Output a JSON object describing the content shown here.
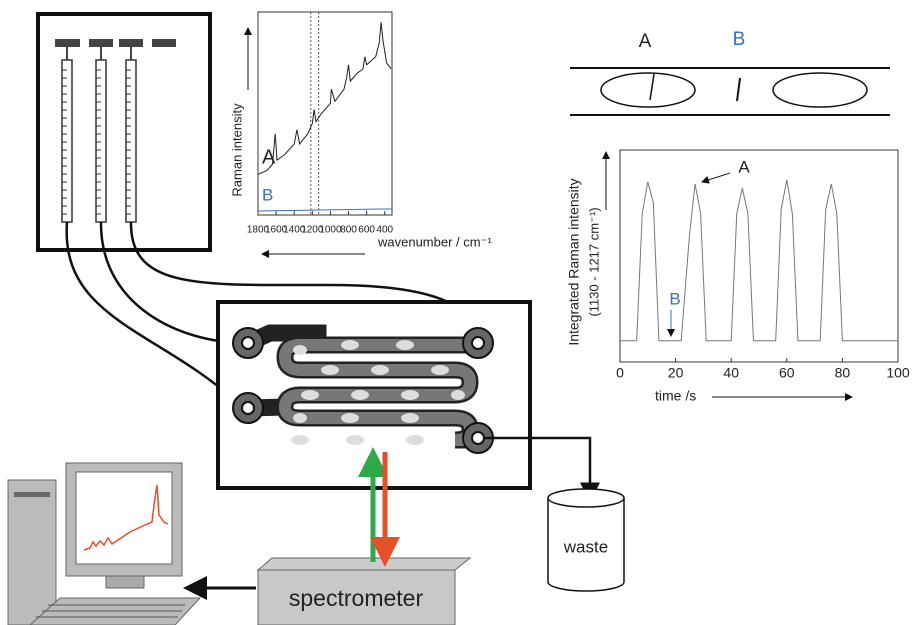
{
  "chart_data": [
    {
      "type": "line",
      "y_label": "Raman intensity",
      "x_label": "wavenumber / cm⁻¹",
      "xlim": [
        1800,
        320
      ],
      "ylim": [
        0,
        100
      ],
      "xticks": [
        1800,
        1600,
        1400,
        1200,
        1000,
        800,
        600,
        400
      ],
      "marker_lines": [
        1217,
        1130
      ],
      "series": [
        {
          "name": "A",
          "color": "#222222",
          "x": [
            1800,
            1700,
            1640,
            1610,
            1590,
            1500,
            1400,
            1370,
            1340,
            1250,
            1200,
            1180,
            1160,
            1100,
            1000,
            990,
            950,
            850,
            820,
            800,
            780,
            700,
            640,
            620,
            600,
            500,
            460,
            440,
            420,
            380,
            330
          ],
          "values": [
            20,
            22,
            25,
            40,
            27,
            30,
            35,
            42,
            35,
            40,
            45,
            52,
            46,
            50,
            55,
            62,
            56,
            62,
            68,
            74,
            66,
            70,
            72,
            78,
            74,
            78,
            85,
            95,
            86,
            75,
            72
          ]
        },
        {
          "name": "B",
          "color": "#3a6fc4",
          "x": [
            1800,
            320
          ],
          "values": [
            2,
            3
          ]
        }
      ]
    },
    {
      "type": "line",
      "y_label": [
        "Integrated Raman intensity",
        "(1130 - 1217 cm⁻¹)"
      ],
      "x_label": "time /s",
      "xlim": [
        0,
        100
      ],
      "ylim": [
        0,
        100
      ],
      "xticks": [
        0,
        20,
        40,
        60,
        80,
        100
      ],
      "annotations": [
        {
          "text": "A",
          "color": "#222222"
        },
        {
          "text": "B",
          "color": "#3a6fc4"
        }
      ],
      "series": [
        {
          "color": "#777777",
          "x": [
            0,
            6,
            8,
            10,
            12,
            14,
            22,
            25,
            27,
            29,
            31,
            40,
            42,
            44,
            46,
            48,
            56,
            58,
            60,
            62,
            64,
            72,
            74,
            76,
            78,
            80,
            100
          ],
          "values": [
            10,
            10,
            70,
            85,
            75,
            10,
            10,
            60,
            84,
            70,
            10,
            10,
            70,
            82,
            70,
            10,
            10,
            72,
            86,
            70,
            10,
            10,
            72,
            84,
            70,
            10,
            10
          ]
        }
      ]
    }
  ],
  "diagram": {
    "droplet_labels": [
      "A",
      "B"
    ],
    "waste": "waste",
    "spectrometer": "spectrometer"
  }
}
